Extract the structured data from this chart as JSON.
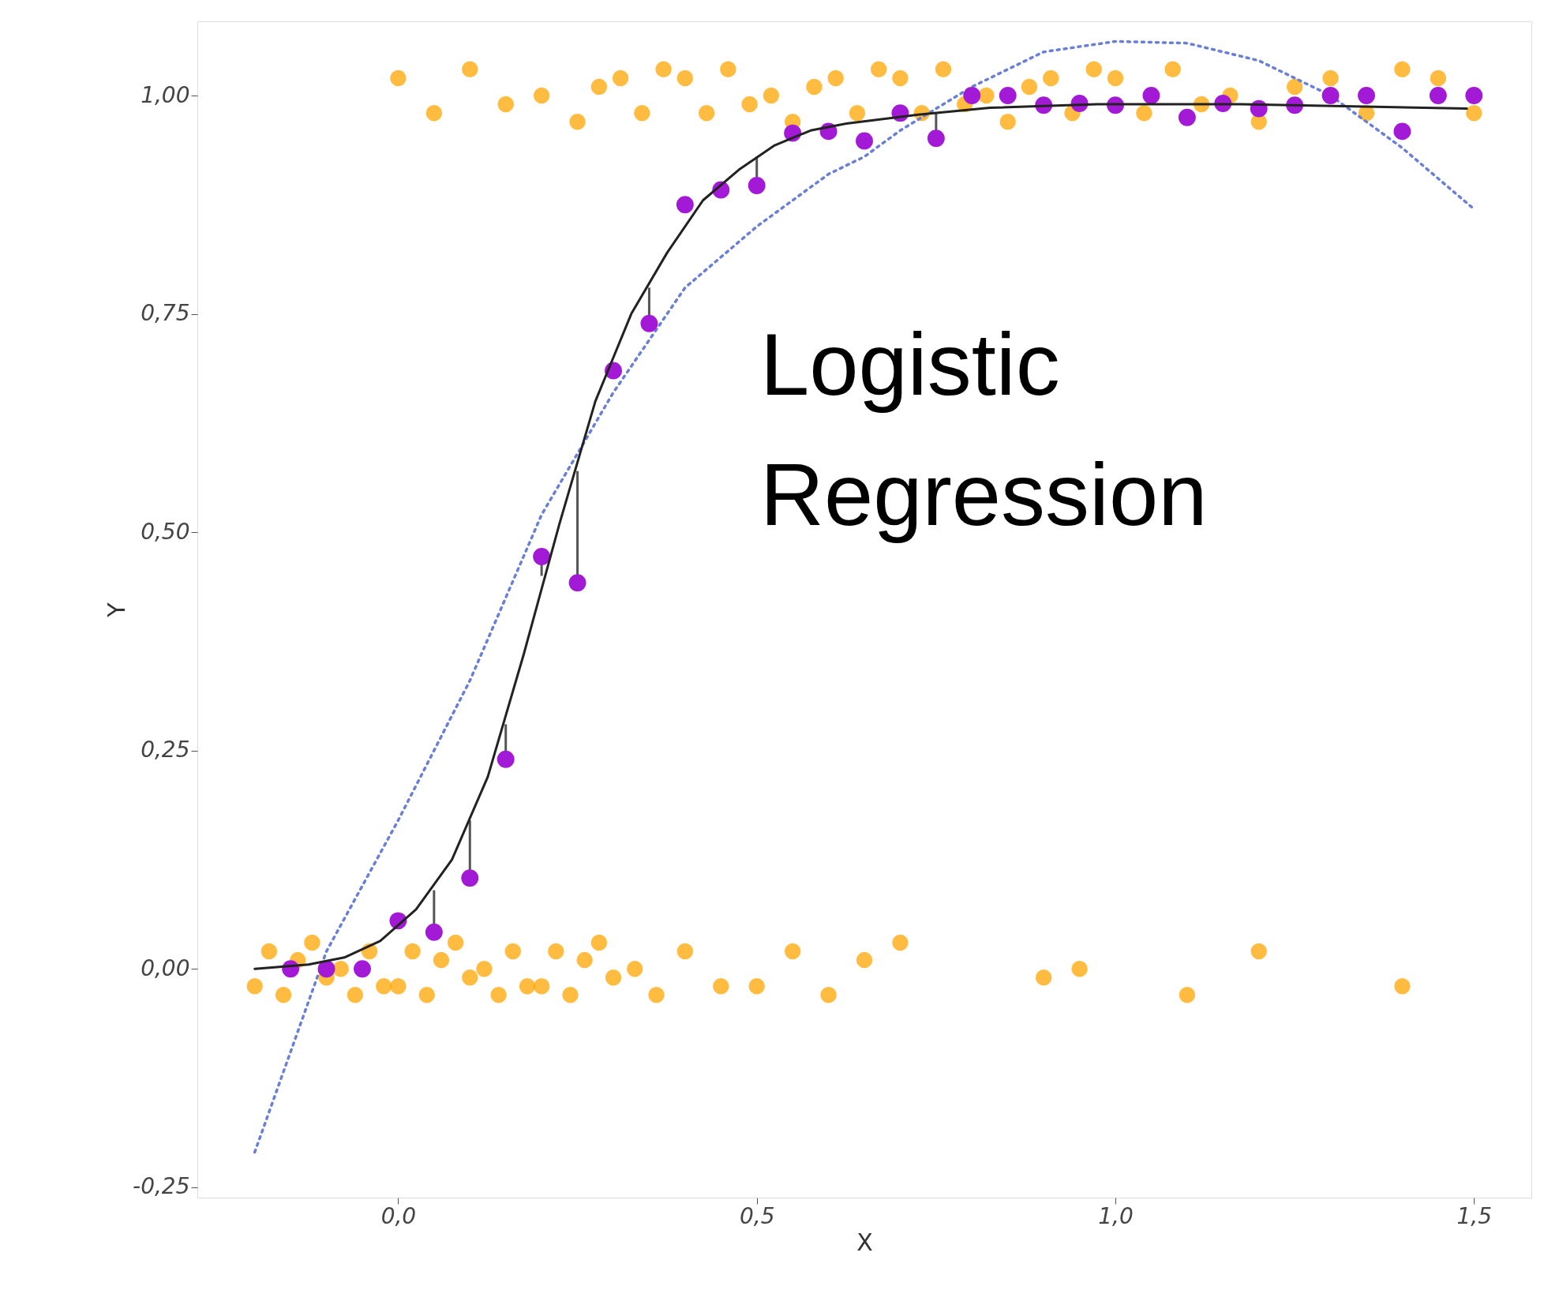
{
  "chart_data": {
    "type": "scatter",
    "xlabel": "X",
    "ylabel": "Y",
    "annotations": [
      "Logistic\nRegression"
    ],
    "xlim": [
      -0.28,
      1.58
    ],
    "ylim": [
      -0.262,
      1.085
    ],
    "xticks": [
      {
        "value": 0,
        "label": "0,0"
      },
      {
        "value": 0.5,
        "label": "0,5"
      },
      {
        "value": 1,
        "label": "1,0"
      },
      {
        "value": 1.5,
        "label": "1,5"
      }
    ],
    "yticks": [
      {
        "value": -0.25,
        "label": "-0,25"
      },
      {
        "value": 0,
        "label": "0,00"
      },
      {
        "value": 0.25,
        "label": "0,25"
      },
      {
        "value": 0.5,
        "label": "0,50"
      },
      {
        "value": 0.75,
        "label": "0,75"
      },
      {
        "value": 1,
        "label": "1,00"
      }
    ],
    "grid": false,
    "marker": "circle",
    "series": [
      {
        "type": "scatter",
        "color": "#ffa500",
        "x": [
          -0.2,
          -0.18,
          -0.16,
          -0.14,
          -0.12,
          -0.1,
          -0.08,
          -0.06,
          -0.04,
          -0.02,
          0,
          0.02,
          0.04,
          0.06,
          0.08,
          0.1,
          0.12,
          0.14,
          0.16,
          0.18,
          0.2,
          0.22,
          0.24,
          0.26,
          0.28,
          0.3,
          0.33,
          0.36,
          0.4,
          0.45,
          0.5,
          0.55,
          0.6,
          0.65,
          0.7,
          0.9,
          0.95,
          1.1,
          1.2,
          1.4
        ],
        "values": [
          -0.02,
          0.02,
          -0.03,
          0.01,
          0.03,
          -0.01,
          0.0,
          -0.03,
          0.02,
          -0.02,
          -0.02,
          0.02,
          -0.03,
          0.01,
          0.03,
          -0.01,
          0.0,
          -0.03,
          0.02,
          -0.02,
          -0.02,
          0.02,
          -0.03,
          0.01,
          0.03,
          -0.01,
          0.0,
          -0.03,
          0.02,
          -0.02,
          -0.02,
          0.02,
          -0.03,
          0.01,
          0.03,
          -0.01,
          0.0,
          -0.03,
          0.02,
          -0.02
        ]
      },
      {
        "type": "scatter",
        "color": "#ffa500",
        "x": [
          0.0,
          0.05,
          0.1,
          0.15,
          0.2,
          0.25,
          0.28,
          0.31,
          0.34,
          0.37,
          0.4,
          0.43,
          0.46,
          0.49,
          0.52,
          0.55,
          0.58,
          0.61,
          0.64,
          0.67,
          0.7,
          0.73,
          0.76,
          0.79,
          0.82,
          0.85,
          0.88,
          0.91,
          0.94,
          0.97,
          1.0,
          1.04,
          1.08,
          1.12,
          1.16,
          1.2,
          1.25,
          1.3,
          1.35,
          1.4,
          1.45,
          1.5
        ],
        "values": [
          1.02,
          0.98,
          1.03,
          0.99,
          1.0,
          0.97,
          1.01,
          1.02,
          0.98,
          1.03,
          1.02,
          0.98,
          1.03,
          0.99,
          1.0,
          0.97,
          1.01,
          1.02,
          0.98,
          1.03,
          1.02,
          0.98,
          1.03,
          0.99,
          1.0,
          0.97,
          1.01,
          1.02,
          0.98,
          1.03,
          1.02,
          0.98,
          1.03,
          0.99,
          1.0,
          0.97,
          1.01,
          1.02,
          0.98,
          1.03,
          1.02,
          0.98
        ]
      },
      {
        "type": "line",
        "color": "#6a7fd6",
        "line_style": "dotted",
        "marker": "none",
        "x": [
          -0.2,
          -0.1,
          0,
          0.05,
          0.1,
          0.2,
          0.3,
          0.4,
          0.5,
          0.6,
          0.65,
          0.7,
          0.8,
          0.9,
          1.0,
          1.1,
          1.2,
          1.3,
          1.4,
          1.5
        ],
        "values": [
          -0.21,
          0.02,
          0.17,
          0.25,
          0.33,
          0.52,
          0.66,
          0.78,
          0.85,
          0.91,
          0.93,
          0.96,
          1.01,
          1.05,
          1.062,
          1.06,
          1.04,
          1.0,
          0.94,
          0.87
        ]
      },
      {
        "type": "line",
        "color": "#222222",
        "line_style": "solid",
        "marker": "none",
        "x": [
          -0.2,
          -0.125,
          -0.075,
          -0.025,
          0.025,
          0.075,
          0.125,
          0.175,
          0.225,
          0.275,
          0.325,
          0.375,
          0.425,
          0.475,
          0.525,
          0.575,
          0.625,
          0.725,
          0.825,
          0.975,
          1.175,
          1.49
        ],
        "values": [
          0.0,
          0.005,
          0.013,
          0.032,
          0.068,
          0.125,
          0.22,
          0.36,
          0.51,
          0.65,
          0.75,
          0.82,
          0.88,
          0.915,
          0.943,
          0.96,
          0.968,
          0.978,
          0.986,
          0.99,
          0.99,
          0.985
        ]
      },
      {
        "type": "scatter",
        "color": "#a31ad6",
        "x": [
          -0.15,
          -0.1,
          -0.05,
          0,
          0.05,
          0.1,
          0.15,
          0.2,
          0.25,
          0.3,
          0.35,
          0.4,
          0.45,
          0.5,
          0.55,
          0.6,
          0.65,
          0.7,
          0.75,
          0.8,
          0.85,
          0.9,
          0.95,
          1.0,
          1.05,
          1.1,
          1.15,
          1.2,
          1.25,
          1.3,
          1.35,
          1.4,
          1.45,
          1.5
        ],
        "values": [
          0,
          0,
          0,
          0.055,
          0.042,
          0.104,
          0.24,
          0.472,
          0.442,
          0.685,
          0.739,
          0.875,
          0.892,
          0.897,
          0.957,
          0.959,
          0.948,
          0.98,
          0.951,
          1.0,
          1.0,
          0.989,
          0.991,
          0.989,
          1.0,
          0.975,
          0.991,
          0.985,
          0.989,
          1.0,
          1.0,
          0.959,
          1.0,
          1.0
        ],
        "errors": [
          null,
          null,
          null,
          null,
          [
            0.042,
            0.09
          ],
          [
            0.104,
            0.17
          ],
          [
            0.24,
            0.28
          ],
          [
            0.45,
            0.472
          ],
          [
            0.442,
            0.57
          ],
          null,
          [
            0.739,
            0.78
          ],
          null,
          null,
          [
            0.897,
            0.93
          ],
          null,
          null,
          null,
          null,
          [
            0.951,
            0.98
          ],
          null,
          null,
          null,
          null,
          null,
          null,
          null,
          null,
          null,
          null,
          null,
          null,
          null,
          null,
          null
        ]
      }
    ]
  }
}
